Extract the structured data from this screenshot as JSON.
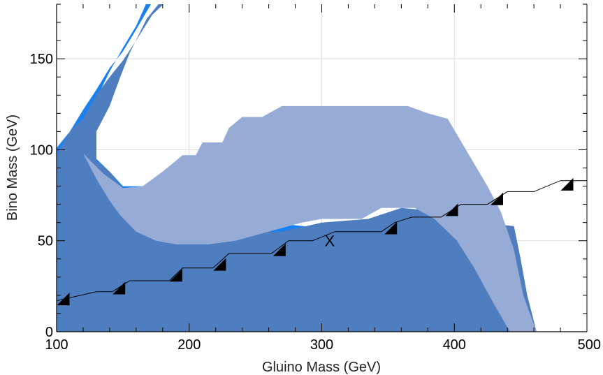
{
  "chart_data": {
    "type": "area",
    "xlabel": "Gluino Mass (GeV)",
    "ylabel": "Bino Mass (GeV)",
    "xlim": [
      100,
      500
    ],
    "ylim": [
      0,
      180
    ],
    "x_ticks": [
      {
        "value": 100,
        "label": "100"
      },
      {
        "value": 200,
        "label": "200"
      },
      {
        "value": 300,
        "label": "300"
      },
      {
        "value": 400,
        "label": "400"
      },
      {
        "value": 500,
        "label": "500"
      }
    ],
    "y_ticks": [
      {
        "value": 0,
        "label": "0"
      },
      {
        "value": 50,
        "label": "50"
      },
      {
        "value": 100,
        "label": "100"
      },
      {
        "value": 150,
        "label": "150"
      }
    ],
    "grid": true,
    "colors": {
      "bright_blue": "#1a82f0",
      "dark_blue": "#4f7ec0",
      "light_blue": "#97abd7",
      "step_line": "#000000"
    },
    "regions": [
      {
        "color": "#1a82f0",
        "points": [
          [
            100,
            101
          ],
          [
            110,
            110
          ],
          [
            120,
            122
          ],
          [
            130,
            133
          ],
          [
            140,
            145
          ],
          [
            150,
            154
          ],
          [
            160,
            166
          ],
          [
            172,
            181
          ],
          [
            168,
            181
          ],
          [
            160,
            168
          ],
          [
            150,
            156
          ],
          [
            140,
            143
          ],
          [
            130,
            128
          ],
          [
            130,
            95
          ],
          [
            140,
            88
          ],
          [
            150,
            80
          ],
          [
            160,
            80
          ],
          [
            175,
            80
          ],
          [
            185,
            80
          ],
          [
            200,
            78
          ],
          [
            220,
            72
          ],
          [
            240,
            65
          ],
          [
            260,
            60
          ],
          [
            300,
            57
          ],
          [
            340,
            58
          ],
          [
            370,
            60
          ],
          [
            400,
            66
          ],
          [
            420,
            70
          ],
          [
            432,
            60
          ],
          [
            440,
            40
          ],
          [
            443,
            10
          ],
          [
            443,
            0
          ],
          [
            100,
            0
          ]
        ]
      },
      {
        "color": "#4f7ec0",
        "points": [
          [
            100,
            97
          ],
          [
            110,
            110
          ],
          [
            120,
            117
          ],
          [
            130,
            130
          ],
          [
            140,
            140
          ],
          [
            150,
            149
          ],
          [
            160,
            160
          ],
          [
            172,
            174
          ],
          [
            182,
            181
          ],
          [
            178,
            181
          ],
          [
            168,
            172
          ],
          [
            155,
            153
          ],
          [
            148,
            140
          ],
          [
            140,
            124
          ],
          [
            130,
            110
          ],
          [
            130,
            94
          ],
          [
            140,
            88
          ],
          [
            150,
            79
          ],
          [
            160,
            79
          ],
          [
            175,
            79
          ],
          [
            185,
            75
          ],
          [
            200,
            70
          ],
          [
            215,
            60
          ],
          [
            235,
            50
          ],
          [
            255,
            55
          ],
          [
            270,
            55
          ],
          [
            300,
            60
          ],
          [
            335,
            62
          ],
          [
            360,
            68
          ],
          [
            390,
            66
          ],
          [
            420,
            60
          ],
          [
            445,
            58
          ],
          [
            450,
            40
          ],
          [
            455,
            20
          ],
          [
            462,
            0
          ],
          [
            100,
            0
          ]
        ]
      },
      {
        "color": "#97abd7",
        "points": [
          [
            120,
            98
          ],
          [
            135,
            87
          ],
          [
            150,
            79
          ],
          [
            165,
            80
          ],
          [
            180,
            88
          ],
          [
            195,
            97
          ],
          [
            205,
            97
          ],
          [
            210,
            104
          ],
          [
            225,
            104
          ],
          [
            230,
            112
          ],
          [
            240,
            118
          ],
          [
            255,
            118
          ],
          [
            270,
            124
          ],
          [
            315,
            124
          ],
          [
            335,
            124
          ],
          [
            365,
            124
          ],
          [
            380,
            120
          ],
          [
            395,
            117
          ],
          [
            412,
            96
          ],
          [
            425,
            80
          ],
          [
            435,
            66
          ],
          [
            445,
            45
          ],
          [
            452,
            20
          ],
          [
            462,
            0
          ],
          [
            442,
            0
          ],
          [
            430,
            15
          ],
          [
            415,
            35
          ],
          [
            402,
            50
          ],
          [
            385,
            62
          ],
          [
            370,
            68
          ],
          [
            345,
            68
          ],
          [
            330,
            62
          ],
          [
            300,
            62
          ],
          [
            285,
            60
          ],
          [
            270,
            57
          ],
          [
            250,
            53
          ],
          [
            235,
            50
          ],
          [
            215,
            48
          ],
          [
            190,
            48
          ],
          [
            175,
            50
          ],
          [
            160,
            55
          ],
          [
            148,
            64
          ],
          [
            140,
            72
          ],
          [
            130,
            84
          ],
          [
            120,
            98
          ]
        ]
      }
    ],
    "step_line": {
      "points": [
        [
          100,
          17
        ],
        [
          130,
          22
        ],
        [
          142,
          22
        ],
        [
          155,
          28
        ],
        [
          185,
          28
        ],
        [
          195,
          35
        ],
        [
          218,
          35
        ],
        [
          230,
          43
        ],
        [
          262,
          43
        ],
        [
          275,
          50
        ],
        [
          293,
          50
        ],
        [
          310,
          55
        ],
        [
          330,
          55
        ],
        [
          345,
          55
        ],
        [
          355,
          60
        ],
        [
          368,
          63
        ],
        [
          390,
          63
        ],
        [
          405,
          70
        ],
        [
          425,
          70
        ],
        [
          440,
          77
        ],
        [
          460,
          77
        ],
        [
          480,
          83
        ],
        [
          500,
          83
        ]
      ]
    },
    "markers": [
      {
        "type": "triangle",
        "x": 105,
        "y": 18
      },
      {
        "type": "triangle",
        "x": 147,
        "y": 24
      },
      {
        "type": "triangle",
        "x": 190,
        "y": 31
      },
      {
        "type": "triangle",
        "x": 223,
        "y": 37
      },
      {
        "type": "triangle",
        "x": 268,
        "y": 45
      },
      {
        "type": "triangle",
        "x": 352,
        "y": 57
      },
      {
        "type": "triangle",
        "x": 398,
        "y": 67
      },
      {
        "type": "triangle",
        "x": 432,
        "y": 73
      },
      {
        "type": "triangle",
        "x": 485,
        "y": 81
      }
    ],
    "annotations": [
      {
        "text": "X",
        "x": 306,
        "y": 50
      }
    ]
  }
}
